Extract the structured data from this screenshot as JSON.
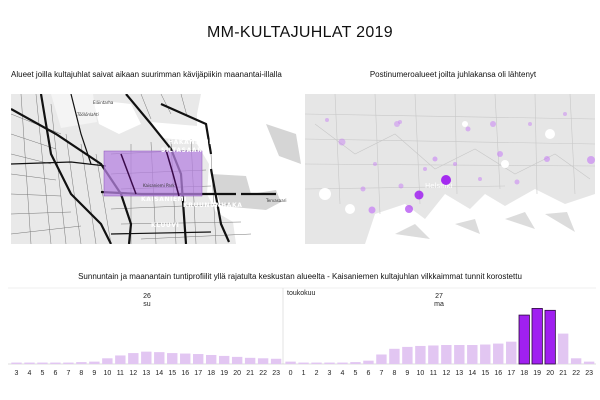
{
  "title": "MM-KULTAJUHLAT 2019",
  "left_panel": {
    "title": "Alueet joilla kultajuhlat saivat aikaan suurimman kävijäpiikin maanantai-illalla",
    "district_labels": [
      "HAKANIEMI",
      "SILTASAARI",
      "KAISANIEMI",
      "KRUUNUNHAKA",
      "KLUUVI"
    ],
    "place_labels": [
      "Töölönlahti",
      "Kaisaniemi Park",
      "Eläintarha",
      "Tervasaari"
    ],
    "highlight_color": "#b583e0"
  },
  "right_panel": {
    "title": "Postinumeroalueet joilta juhlakansa oli lähtenyt",
    "city_label": "Helsinki",
    "dot_color": "#a020f0"
  },
  "chart_title": "Sunnuntain ja maanantain tuntiprofiilit yllä rajatulta keskustan alueelta - Kaisaniemen kultajuhlan vilkkaimmat tunnit korostettu",
  "chart_data": {
    "type": "bar",
    "days": [
      {
        "day": "26",
        "weekday": "su",
        "month": ""
      },
      {
        "day": "27",
        "weekday": "ma",
        "month": "toukokuu"
      }
    ],
    "categories": [
      "3",
      "4",
      "5",
      "6",
      "7",
      "8",
      "9",
      "10",
      "11",
      "12",
      "13",
      "14",
      "15",
      "16",
      "17",
      "18",
      "19",
      "20",
      "21",
      "22",
      "23",
      "0",
      "1",
      "2",
      "3",
      "4",
      "5",
      "6",
      "7",
      "8",
      "9",
      "10",
      "11",
      "12",
      "13",
      "14",
      "15",
      "16",
      "17",
      "18",
      "19",
      "20",
      "21",
      "22",
      "23"
    ],
    "values": [
      0.3,
      0.3,
      0.3,
      0.3,
      0.3,
      0.4,
      0.5,
      1.2,
      1.8,
      2.3,
      2.6,
      2.5,
      2.3,
      2.2,
      2.1,
      1.9,
      1.7,
      1.5,
      1.3,
      1.2,
      1.1,
      0.5,
      0.3,
      0.3,
      0.3,
      0.3,
      0.4,
      0.7,
      2.0,
      3.2,
      3.6,
      3.8,
      3.9,
      4.0,
      4.0,
      4.0,
      4.1,
      4.3,
      4.7,
      10.3,
      11.7,
      11.3,
      6.4,
      1.2,
      0.5
    ],
    "highlighted": [
      "18",
      "19",
      "20"
    ],
    "colors": {
      "normal": "#e2c6f2",
      "highlight": "#a020f0",
      "highlight_stroke": "#2a0a3a"
    }
  }
}
